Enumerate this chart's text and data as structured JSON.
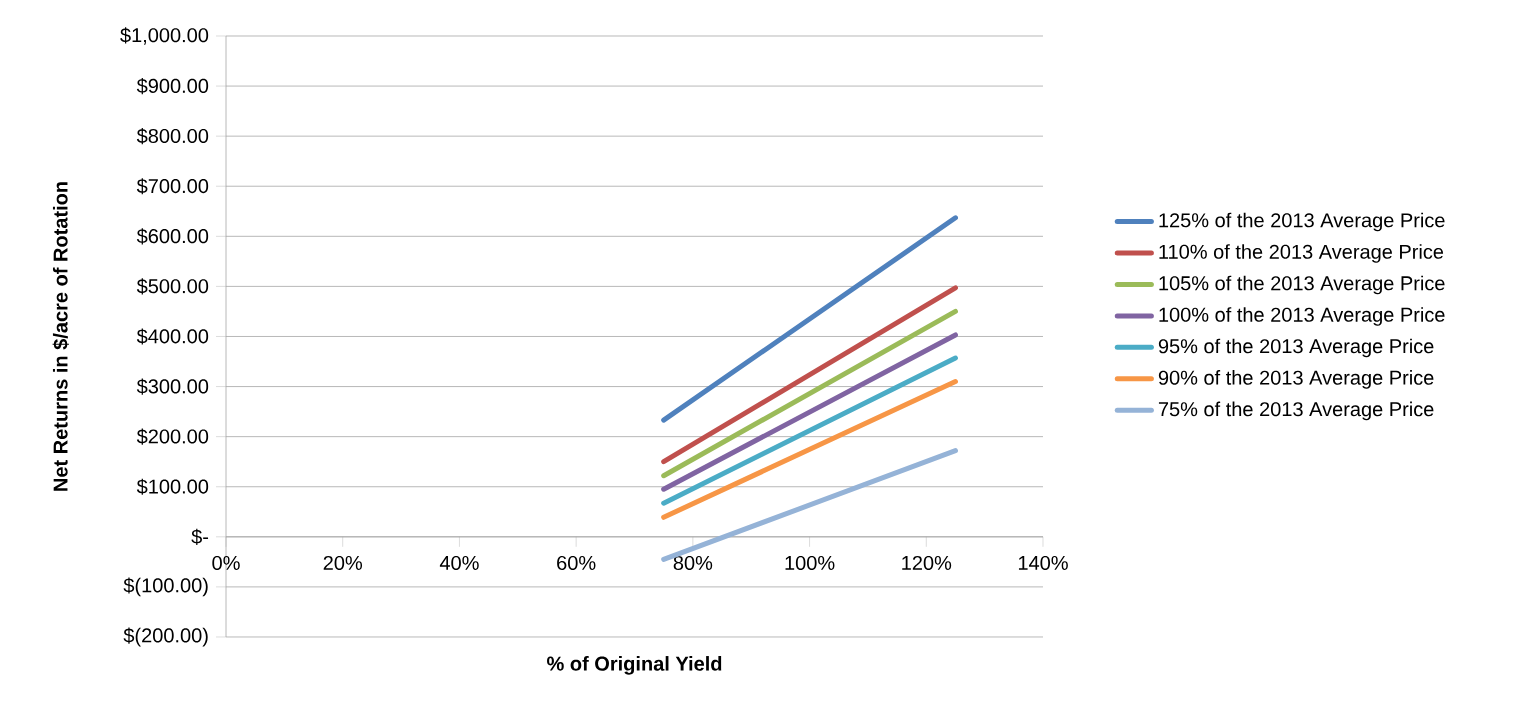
{
  "chart_data": {
    "type": "line",
    "xlabel": "% of Original Yield",
    "ylabel": "Net Returns in $/acre of Rotation",
    "x": [
      75,
      125
    ],
    "series": [
      {
        "name": "125% of the 2013 Average Price",
        "color": "#4f81bd",
        "values": [
          233,
          637
        ]
      },
      {
        "name": "110% of the 2013 Average Price",
        "color": "#c0504d",
        "values": [
          150,
          497
        ]
      },
      {
        "name": "105% of the 2013 Average Price",
        "color": "#9bbb59",
        "values": [
          122,
          450
        ]
      },
      {
        "name": "100% of the 2013 Average Price",
        "color": "#8064a2",
        "values": [
          95,
          403
        ]
      },
      {
        "name": "95% of the 2013 Average Price",
        "color": "#4bacc6",
        "values": [
          67,
          357
        ]
      },
      {
        "name": "90% of the 2013 Average Price",
        "color": "#f79646",
        "values": [
          39,
          310
        ]
      },
      {
        "name": "75% of the 2013 Average Price",
        "color": "#95b3d7",
        "values": [
          -45,
          172
        ]
      }
    ],
    "xlim": [
      0,
      140
    ],
    "xticks": [
      {
        "value": 0,
        "label": "0%"
      },
      {
        "value": 20,
        "label": "20%"
      },
      {
        "value": 40,
        "label": "40%"
      },
      {
        "value": 60,
        "label": "60%"
      },
      {
        "value": 80,
        "label": "80%"
      },
      {
        "value": 100,
        "label": "100%"
      },
      {
        "value": 120,
        "label": "120%"
      },
      {
        "value": 140,
        "label": "140%"
      }
    ],
    "ylim": [
      -200,
      1000
    ],
    "yticks": [
      {
        "value": -200,
        "label": "$(200.00)"
      },
      {
        "value": -100,
        "label": "$(100.00)"
      },
      {
        "value": 0,
        "label": "$-"
      },
      {
        "value": 100,
        "label": "$100.00"
      },
      {
        "value": 200,
        "label": "$200.00"
      },
      {
        "value": 300,
        "label": "$300.00"
      },
      {
        "value": 400,
        "label": "$400.00"
      },
      {
        "value": 500,
        "label": "$500.00"
      },
      {
        "value": 600,
        "label": "$600.00"
      },
      {
        "value": 700,
        "label": "$700.00"
      },
      {
        "value": 800,
        "label": "$800.00"
      },
      {
        "value": 900,
        "label": "$900.00"
      },
      {
        "value": 1000,
        "label": "$1,000.00"
      }
    ],
    "grid": "y",
    "legend": "right",
    "marker": "none",
    "line_style": "solid"
  }
}
